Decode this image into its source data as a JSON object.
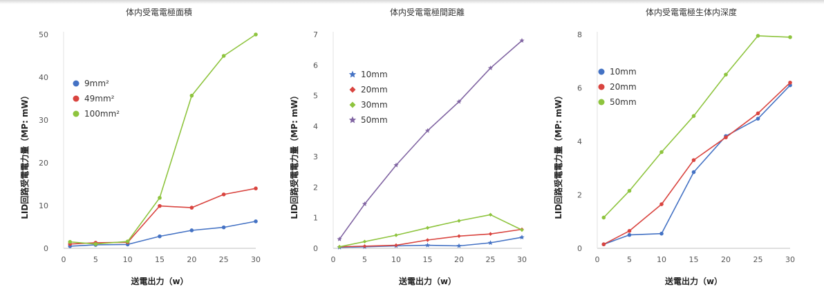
{
  "chart_data": [
    {
      "type": "line",
      "title": "体内受電電極面積",
      "xlabel": "送電出力（w）",
      "ylabel": "LID回路受電電力量（MP: mW）",
      "xlim": [
        0,
        30
      ],
      "ylim": [
        0,
        50
      ],
      "xticks": [
        0,
        5,
        10,
        15,
        20,
        25,
        30
      ],
      "xtick_labels": [
        "0",
        "5",
        "10",
        "15",
        "20",
        "25",
        "30"
      ],
      "yticks": [
        0,
        10,
        20,
        30,
        40,
        50
      ],
      "ytick_labels": [
        "0",
        "10",
        "20",
        "30",
        "40",
        "50"
      ],
      "grid": false,
      "legend_position": "upper-left",
      "series": [
        {
          "name": "9mm²",
          "color": "#4472c4",
          "marker": "circle",
          "x": [
            1,
            5,
            10,
            15,
            20,
            25,
            30
          ],
          "y": [
            0.5,
            0.8,
            0.9,
            2.8,
            4.2,
            4.9,
            6.3
          ]
        },
        {
          "name": "49mm²",
          "color": "#d9443f",
          "marker": "circle",
          "x": [
            1,
            5,
            10,
            15,
            20,
            25,
            30
          ],
          "y": [
            1.0,
            1.3,
            1.4,
            9.9,
            9.5,
            12.6,
            14.0
          ]
        },
        {
          "name": "100mm²",
          "color": "#8ec43e",
          "marker": "circle",
          "x": [
            1,
            5,
            10,
            15,
            20,
            25,
            30
          ],
          "y": [
            1.5,
            1.0,
            1.6,
            11.8,
            35.7,
            45.0,
            50.0
          ]
        }
      ]
    },
    {
      "type": "line",
      "title": "体内受電電極間距離",
      "xlabel": "送電出力（w）",
      "ylabel": "LID回路受電電力量（MP: mW）",
      "xlim": [
        0,
        30
      ],
      "ylim": [
        0,
        7
      ],
      "xticks": [
        0,
        5,
        10,
        15,
        20,
        25,
        30
      ],
      "xtick_labels": [
        "0",
        "5",
        "10",
        "15",
        "20",
        "25",
        "30"
      ],
      "yticks": [
        0,
        1,
        2,
        3,
        4,
        5,
        6,
        7
      ],
      "ytick_labels": [
        "0",
        "1",
        "2",
        "3",
        "4",
        "5",
        "6",
        "7"
      ],
      "grid": false,
      "legend_position": "upper-left",
      "series": [
        {
          "name": "10mm",
          "color": "#4472c4",
          "marker": "star",
          "x": [
            1,
            5,
            10,
            15,
            20,
            25,
            30
          ],
          "y": [
            0.03,
            0.05,
            0.08,
            0.1,
            0.08,
            0.18,
            0.36
          ]
        },
        {
          "name": "20mm",
          "color": "#d9443f",
          "marker": "diamond",
          "x": [
            1,
            5,
            10,
            15,
            20,
            25,
            30
          ],
          "y": [
            0.05,
            0.07,
            0.1,
            0.27,
            0.4,
            0.47,
            0.62
          ]
        },
        {
          "name": "30mm",
          "color": "#8ec43e",
          "marker": "diamond",
          "x": [
            1,
            5,
            10,
            15,
            20,
            25,
            30
          ],
          "y": [
            0.05,
            0.22,
            0.43,
            0.67,
            0.9,
            1.1,
            0.6
          ]
        },
        {
          "name": "50mm",
          "color": "#8064a2",
          "marker": "star",
          "x": [
            1,
            5,
            10,
            15,
            20,
            25,
            30
          ],
          "y": [
            0.3,
            1.45,
            2.72,
            3.85,
            4.8,
            5.9,
            6.8
          ]
        }
      ]
    },
    {
      "type": "line",
      "title": "体内受電電極生体内深度",
      "xlabel": "送電出力（w）",
      "ylabel": "LID回路受電電力量（MP: mW）",
      "xlim": [
        0,
        30
      ],
      "ylim": [
        0,
        8
      ],
      "xticks": [
        0,
        5,
        10,
        15,
        20,
        25,
        30
      ],
      "xtick_labels": [
        "0",
        "5",
        "10",
        "15",
        "20",
        "25",
        "30"
      ],
      "yticks": [
        0,
        2,
        4,
        6,
        8
      ],
      "ytick_labels": [
        "0",
        "2",
        "4",
        "6",
        "8"
      ],
      "grid": false,
      "legend_position": "upper-left",
      "series": [
        {
          "name": "10mm",
          "color": "#4472c4",
          "marker": "circle",
          "x": [
            1,
            5,
            10,
            15,
            20,
            25,
            30
          ],
          "y": [
            0.15,
            0.5,
            0.55,
            2.85,
            4.2,
            4.85,
            6.1
          ]
        },
        {
          "name": "20mm",
          "color": "#d9443f",
          "marker": "circle",
          "x": [
            1,
            5,
            10,
            15,
            20,
            25,
            30
          ],
          "y": [
            0.15,
            0.65,
            1.65,
            3.3,
            4.15,
            5.05,
            6.2
          ]
        },
        {
          "name": "50mm",
          "color": "#8ec43e",
          "marker": "circle",
          "x": [
            1,
            5,
            10,
            15,
            20,
            25,
            30
          ],
          "y": [
            1.15,
            2.15,
            3.6,
            4.95,
            6.5,
            7.95,
            7.9
          ]
        }
      ]
    }
  ]
}
